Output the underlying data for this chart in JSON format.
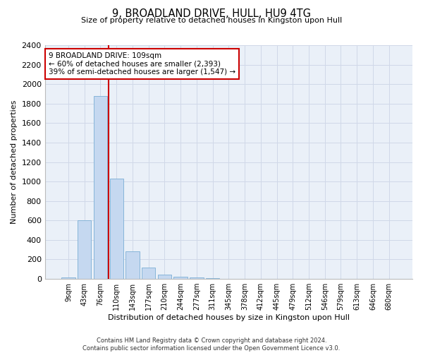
{
  "title": "9, BROADLAND DRIVE, HULL, HU9 4TG",
  "subtitle": "Size of property relative to detached houses in Kingston upon Hull",
  "xlabel": "Distribution of detached houses by size in Kingston upon Hull",
  "ylabel": "Number of detached properties",
  "footer_line1": "Contains HM Land Registry data © Crown copyright and database right 2024.",
  "footer_line2": "Contains public sector information licensed under the Open Government Licence v3.0.",
  "bar_labels": [
    "9sqm",
    "43sqm",
    "76sqm",
    "110sqm",
    "143sqm",
    "177sqm",
    "210sqm",
    "244sqm",
    "277sqm",
    "311sqm",
    "345sqm",
    "378sqm",
    "412sqm",
    "445sqm",
    "479sqm",
    "512sqm",
    "546sqm",
    "579sqm",
    "613sqm",
    "646sqm",
    "680sqm"
  ],
  "bar_values": [
    15,
    600,
    1880,
    1030,
    285,
    115,
    47,
    22,
    12,
    5,
    2,
    2,
    0,
    0,
    0,
    0,
    0,
    0,
    0,
    0,
    0
  ],
  "bar_color": "#c5d8f0",
  "bar_edge_color": "#7aaed4",
  "vline_color": "#cc0000",
  "annotation_line1": "9 BROADLAND DRIVE: 109sqm",
  "annotation_line2": "← 60% of detached houses are smaller (2,393)",
  "annotation_line3": "39% of semi-detached houses are larger (1,547) →",
  "annotation_box_facecolor": "#ffffff",
  "annotation_box_edgecolor": "#cc0000",
  "ylim": [
    0,
    2400
  ],
  "yticks": [
    0,
    200,
    400,
    600,
    800,
    1000,
    1200,
    1400,
    1600,
    1800,
    2000,
    2200,
    2400
  ],
  "grid_color": "#d0d8e8",
  "bg_color": "#ffffff",
  "plot_bg_color": "#eaf0f8"
}
